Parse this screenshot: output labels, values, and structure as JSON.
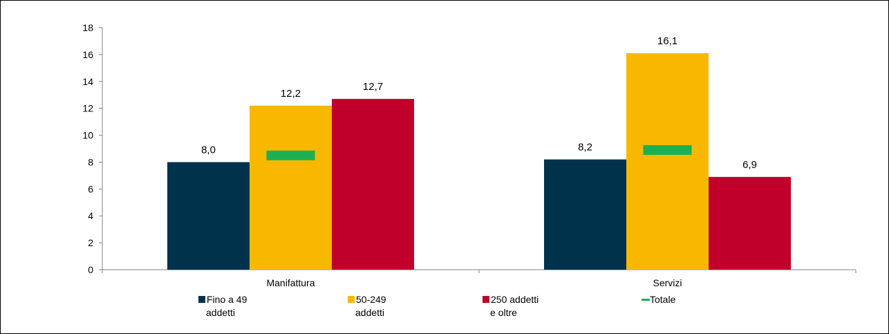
{
  "chart_data": {
    "type": "bar",
    "categories": [
      "Manifattura",
      "Servizi"
    ],
    "series": [
      {
        "name": "Fino a 49 addetti",
        "legend_lines": [
          "Fino a 49",
          "addetti"
        ],
        "values": [
          8.0,
          8.2
        ],
        "labels": [
          "8,0",
          "8,2"
        ],
        "color": "#01324B"
      },
      {
        "name": "50-249 addetti",
        "legend_lines": [
          "50-249",
          "addetti"
        ],
        "values": [
          12.2,
          16.1
        ],
        "labels": [
          "12,2",
          "16,1"
        ],
        "color": "#F9B800"
      },
      {
        "name": "250 addetti e oltre",
        "legend_lines": [
          "250 addetti",
          "e oltre"
        ],
        "values": [
          12.7,
          6.9
        ],
        "labels": [
          "12,7",
          "6,9"
        ],
        "color": "#C0002A"
      }
    ],
    "totale": {
      "name": "Totale",
      "legend_lines": [
        "Totale"
      ],
      "values": [
        8.5,
        8.9
      ],
      "color": "#1DB052"
    },
    "ylim": [
      0,
      18
    ],
    "yticks": [
      0,
      2,
      4,
      6,
      8,
      10,
      12,
      14,
      16,
      18
    ],
    "grid": false,
    "legend_position": "bottom"
  }
}
